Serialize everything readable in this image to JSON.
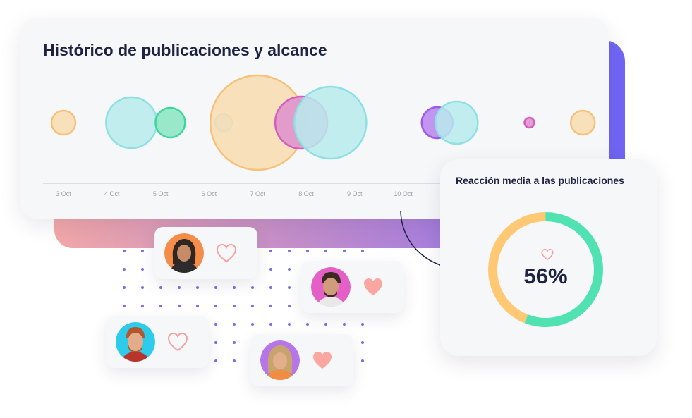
{
  "main_card": {
    "title": "Histórico de publicaciones y alcance"
  },
  "chart_data": [
    {
      "type": "bubble",
      "title": "Histórico de publicaciones y alcance",
      "categories": [
        "3 Oct",
        "4 Oct",
        "5 Oct",
        "6 Oct",
        "7 Oct",
        "8 Oct",
        "9 Oct",
        "10 Oct"
      ],
      "bubbles": [
        {
          "x": 3.0,
          "size": 17,
          "color": "orange"
        },
        {
          "x": 4.4,
          "size": 36,
          "color": "teal"
        },
        {
          "x": 5.2,
          "size": 21,
          "color": "green"
        },
        {
          "x": 6.3,
          "size": 12,
          "color": "teal"
        },
        {
          "x": 7.0,
          "size": 67,
          "color": "orange"
        },
        {
          "x": 7.9,
          "size": 37,
          "color": "pink"
        },
        {
          "x": 8.5,
          "size": 51,
          "color": "teal"
        },
        {
          "x": 10.7,
          "size": 22,
          "color": "purple"
        },
        {
          "x": 11.1,
          "size": 30,
          "color": "teal"
        },
        {
          "x": 12.6,
          "size": 7,
          "color": "pink"
        },
        {
          "x": 13.7,
          "size": 17,
          "color": "orange"
        }
      ],
      "palette": {
        "orange": {
          "fill": "#f8dcb0",
          "stroke": "#f6c27a"
        },
        "teal": {
          "fill": "#b8ebed",
          "stroke": "#8ee0e4"
        },
        "green": {
          "fill": "#88e5c2",
          "stroke": "#3fd69d"
        },
        "pink": {
          "fill": "#de8fce",
          "stroke": "#d65cbf"
        },
        "purple": {
          "fill": "#b784ee",
          "stroke": "#9f59ea"
        }
      }
    },
    {
      "type": "pie",
      "title": "Reacción media a las publicaciones",
      "values": [
        56,
        44
      ],
      "colors": [
        "#50e3b1",
        "#fec875"
      ],
      "center_label": "56%"
    }
  ],
  "reaction_card": {
    "title": "Reacción media a las publicaciones",
    "percentage": "56%"
  },
  "people": [
    {
      "name": "person-1",
      "liked": false,
      "bg": "#f48c4a",
      "skin": "#c68b68",
      "hair": "#2f2622",
      "shirt": "#2d2b2b"
    },
    {
      "name": "person-2",
      "liked": true,
      "bg": "#e45fc6",
      "skin": "#cf9c7c",
      "hair": "#3b2a22",
      "shirt": "#e8e8e8"
    },
    {
      "name": "person-3",
      "liked": false,
      "bg": "#2ecbea",
      "skin": "#e3ad8c",
      "hair": "#b1582f",
      "shirt": "#b8352c"
    },
    {
      "name": "person-4",
      "liked": true,
      "bg": "#b676e7",
      "skin": "#e1b08a",
      "hair": "#c9a36e",
      "shirt": "#f08d42"
    }
  ],
  "colors": {
    "heart_outline": "#f4a3a0",
    "heart_fill": "#fba7a1",
    "accent_purple": "#7166f5",
    "text_dark": "#1d2340",
    "dot": "#7b6cf0"
  }
}
